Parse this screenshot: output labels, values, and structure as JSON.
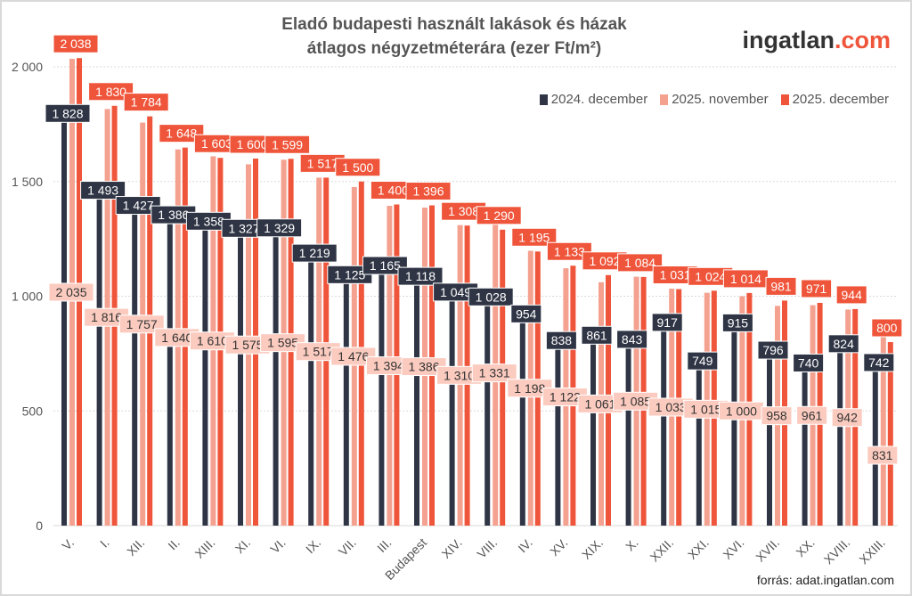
{
  "chart_data": {
    "type": "bar",
    "title": "Eladó budapesti használt lakások és házak átlagos négyzetméterára (ezer Ft/m²)",
    "title_lines": [
      "Eladó budapesti használt lakások és házak",
      "átlagos négyzetméterára (ezer Ft/m²)"
    ],
    "brand": {
      "main": "ingatlan",
      "suffix": ".com"
    },
    "source": "forrás: adat.ingatlan.com",
    "legend_position": "top-right",
    "grid": true,
    "ylim": [
      0,
      2000
    ],
    "yticks": [
      0,
      500,
      1000,
      1500,
      2000
    ],
    "ytick_labels": [
      "0",
      "500",
      "1 000",
      "1 500",
      "2 000"
    ],
    "categories": [
      "V.",
      "I.",
      "XII.",
      "II.",
      "XIII.",
      "XI.",
      "VI.",
      "IX.",
      "VII.",
      "III.",
      "Budapest",
      "XIV.",
      "VIII.",
      "IV.",
      "XV.",
      "XIX.",
      "X.",
      "XXII.",
      "XXI.",
      "XVI.",
      "XVII.",
      "XX.",
      "XVIII.",
      "XXIII."
    ],
    "series": [
      {
        "name": "2024. december",
        "color": "#2f3545",
        "values": [
          1828,
          1493,
          1427,
          1386,
          1358,
          1327,
          1329,
          1219,
          1125,
          1165,
          1118,
          1049,
          1028,
          954,
          838,
          861,
          843,
          917,
          749,
          915,
          796,
          740,
          824,
          742
        ]
      },
      {
        "name": "2025. november",
        "color": "#f4a190",
        "values": [
          2035,
          1816,
          1757,
          1640,
          1610,
          1575,
          1595,
          1517,
          1476,
          1394,
          1386,
          1310,
          1331,
          1198,
          1122,
          1061,
          1085,
          1033,
          1015,
          1000,
          958,
          961,
          942,
          831
        ]
      },
      {
        "name": "2025. december",
        "color": "#ef553a",
        "values": [
          2038,
          1830,
          1784,
          1648,
          1603,
          1600,
          1599,
          1517,
          1500,
          1400,
          1396,
          1308,
          1290,
          1195,
          1133,
          1092,
          1084,
          1031,
          1024,
          1014,
          981,
          971,
          944,
          800
        ]
      }
    ]
  }
}
